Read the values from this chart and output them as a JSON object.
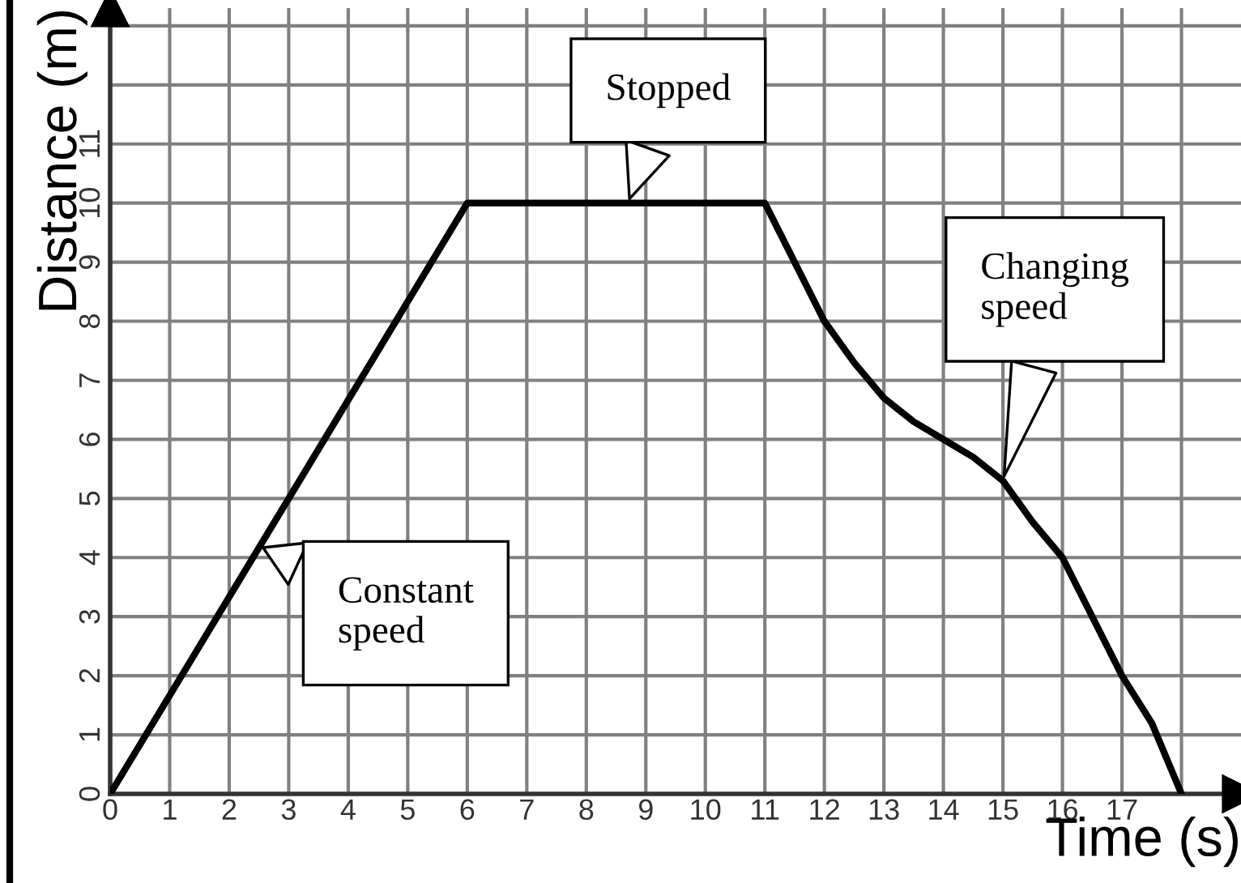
{
  "chart_data": {
    "type": "line",
    "xlabel": "Time (s)",
    "ylabel": "Distance (m)",
    "x": [
      0,
      6,
      11,
      11.5,
      12,
      12.5,
      13,
      13.5,
      14,
      14.5,
      15,
      15.5,
      16,
      16.5,
      17,
      17.5,
      18
    ],
    "values": [
      0,
      10,
      10,
      9.0,
      8.0,
      7.3,
      6.7,
      6.3,
      6.0,
      5.7,
      5.3,
      4.6,
      4.0,
      3.0,
      2.0,
      1.2,
      0
    ],
    "color": "#000000",
    "marker": "none",
    "line_style": "solid",
    "grid": true,
    "xlim": [
      0,
      19
    ],
    "ylim": [
      0,
      13.3
    ],
    "xticks": [
      0,
      1,
      2,
      3,
      4,
      5,
      6,
      7,
      8,
      9,
      10,
      11,
      12,
      13,
      14,
      15,
      16,
      17,
      {
        "value": 18,
        "label": null
      }
    ],
    "yticks": [
      0,
      1,
      2,
      3,
      4,
      5,
      6,
      7,
      8,
      9,
      10,
      11,
      {
        "value": 12,
        "label": null
      },
      {
        "value": 13,
        "label": null
      }
    ],
    "annotations": [
      {
        "text": "Stopped",
        "x": 8.7,
        "y": 10
      },
      {
        "text": "Constant\nspeed",
        "x": 2.5,
        "y": 4.2
      },
      {
        "text": "Changing\nspeed",
        "x": 15,
        "y": 5.3
      }
    ]
  }
}
